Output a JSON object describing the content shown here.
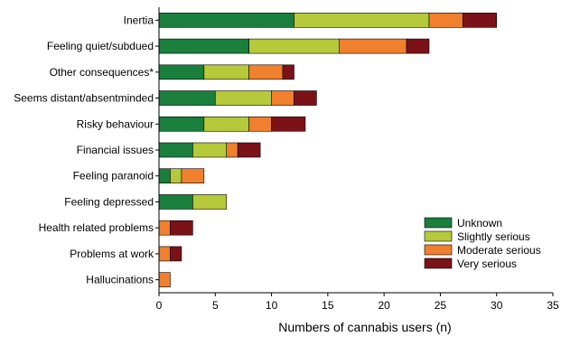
{
  "chart_data": {
    "type": "bar",
    "orientation": "horizontal",
    "stacked": true,
    "title": "",
    "xlabel": "Numbers of cannabis users (n)",
    "ylabel": "",
    "xlim": [
      0,
      35
    ],
    "xticks": [
      0,
      5,
      10,
      15,
      20,
      25,
      30,
      35
    ],
    "grid": false,
    "legend_position": "bottom-right",
    "categories": [
      "Inertia",
      "Feeling quiet/subdued",
      "Other consequences*",
      "Seems distant/absentminded",
      "Risky behaviour",
      "Financial issues",
      "Feeling paranoid",
      "Feeling depressed",
      "Health related problems",
      "Problems at work",
      "Hallucinations"
    ],
    "series": [
      {
        "name": "Unknown",
        "color": "#1a7f3c",
        "values": [
          12,
          8,
          4,
          5,
          4,
          3,
          1,
          3,
          0,
          0,
          0
        ]
      },
      {
        "name": "Slightly serious",
        "color": "#b5c93a",
        "values": [
          12,
          8,
          4,
          5,
          4,
          3,
          1,
          3,
          0,
          0,
          0
        ]
      },
      {
        "name": "Moderate serious",
        "color": "#f07f2e",
        "values": [
          3,
          6,
          3,
          2,
          2,
          1,
          2,
          0,
          1,
          1,
          1
        ]
      },
      {
        "name": "Very serious",
        "color": "#7a1218",
        "values": [
          3,
          2,
          1,
          2,
          3,
          2,
          0,
          0,
          2,
          1,
          0
        ]
      }
    ]
  }
}
